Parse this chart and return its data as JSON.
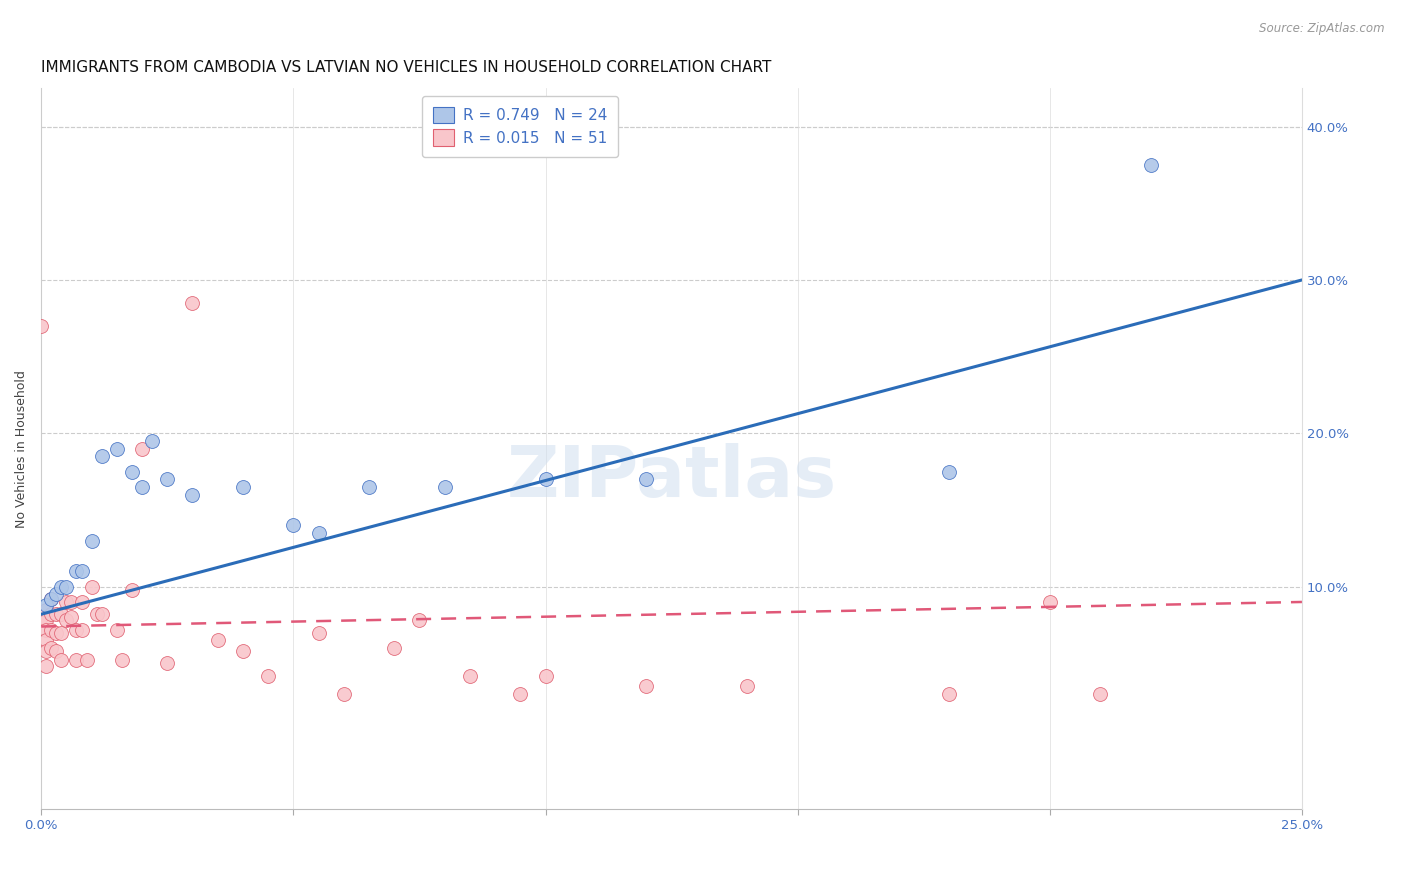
{
  "title": "IMMIGRANTS FROM CAMBODIA VS LATVIAN NO VEHICLES IN HOUSEHOLD CORRELATION CHART",
  "source": "Source: ZipAtlas.com",
  "ylabel": "No Vehicles in Household",
  "xlim": [
    0.0,
    0.25
  ],
  "ylim": [
    -0.045,
    0.425
  ],
  "watermark": "ZIPatlas",
  "legend_R1": "R = 0.749",
  "legend_N1": "N = 24",
  "legend_R2": "R = 0.015",
  "legend_N2": "N = 51",
  "cambodia_color": "#aec6e8",
  "cambodia_edge": "#4472c4",
  "latvian_color": "#f9c6cb",
  "latvian_edge": "#e06070",
  "trendline_cambodia_color": "#2b6cb8",
  "trendline_latvian_color": "#e05878",
  "background_color": "#ffffff",
  "ytick_color": "#4472c4",
  "xtick_color": "#4472c4",
  "title_fontsize": 11,
  "axis_label_fontsize": 9,
  "tick_fontsize": 9.5,
  "legend_fontsize": 11,
  "cambodia_x": [
    0.001,
    0.002,
    0.003,
    0.004,
    0.005,
    0.007,
    0.008,
    0.01,
    0.012,
    0.015,
    0.018,
    0.02,
    0.022,
    0.025,
    0.03,
    0.04,
    0.05,
    0.055,
    0.065,
    0.08,
    0.1,
    0.12,
    0.18,
    0.22
  ],
  "cambodia_y": [
    0.088,
    0.092,
    0.095,
    0.1,
    0.1,
    0.11,
    0.11,
    0.13,
    0.185,
    0.19,
    0.175,
    0.165,
    0.195,
    0.17,
    0.16,
    0.165,
    0.14,
    0.135,
    0.165,
    0.165,
    0.17,
    0.17,
    0.175,
    0.375
  ],
  "latvian_x": [
    0.0,
    0.0,
    0.001,
    0.001,
    0.001,
    0.001,
    0.001,
    0.001,
    0.002,
    0.002,
    0.002,
    0.002,
    0.003,
    0.003,
    0.003,
    0.004,
    0.004,
    0.004,
    0.005,
    0.005,
    0.006,
    0.006,
    0.007,
    0.007,
    0.008,
    0.008,
    0.009,
    0.01,
    0.011,
    0.012,
    0.015,
    0.016,
    0.018,
    0.02,
    0.025,
    0.03,
    0.035,
    0.04,
    0.045,
    0.055,
    0.06,
    0.07,
    0.075,
    0.085,
    0.095,
    0.1,
    0.12,
    0.14,
    0.18,
    0.2,
    0.21
  ],
  "latvian_y": [
    0.27,
    0.08,
    0.085,
    0.078,
    0.072,
    0.065,
    0.058,
    0.048,
    0.092,
    0.082,
    0.072,
    0.06,
    0.082,
    0.07,
    0.058,
    0.082,
    0.07,
    0.052,
    0.09,
    0.078,
    0.09,
    0.08,
    0.072,
    0.052,
    0.09,
    0.072,
    0.052,
    0.1,
    0.082,
    0.082,
    0.072,
    0.052,
    0.098,
    0.19,
    0.05,
    0.285,
    0.065,
    0.058,
    0.042,
    0.07,
    0.03,
    0.06,
    0.078,
    0.042,
    0.03,
    0.042,
    0.035,
    0.035,
    0.03,
    0.09,
    0.03
  ],
  "trendline_cambodia_x0": 0.0,
  "trendline_cambodia_y0": 0.082,
  "trendline_cambodia_x1": 0.25,
  "trendline_cambodia_y1": 0.3,
  "trendline_latvian_x0": 0.0,
  "trendline_latvian_y0": 0.074,
  "trendline_latvian_x1": 0.25,
  "trendline_latvian_y1": 0.09
}
